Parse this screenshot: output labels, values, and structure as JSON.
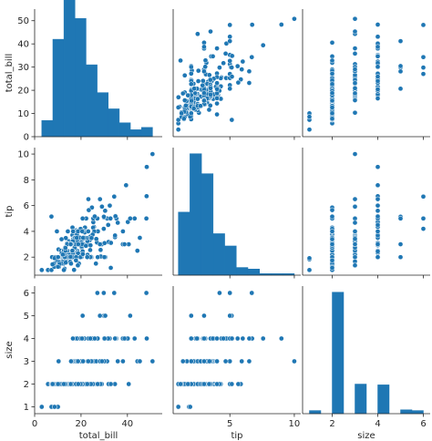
{
  "chart_data": {
    "type": "pairplot",
    "variables": [
      "total_bill",
      "tip",
      "size"
    ],
    "color": "#1f77b4",
    "panel_color_edge": "#ffffff",
    "axes": {
      "total_bill": {
        "label": "total_bill",
        "lim": [
          0,
          55
        ],
        "ticks": [
          "0",
          "20",
          "40"
        ],
        "tick_values": [
          0,
          20,
          40
        ],
        "ytick_values": [
          10,
          20,
          30,
          40,
          50
        ],
        "yticks": [
          "10",
          "20",
          "30",
          "40",
          "50"
        ]
      },
      "tip": {
        "label": "tip",
        "lim": [
          0.6,
          10.5
        ],
        "ticks": [
          "5",
          "10"
        ],
        "tick_values": [
          5,
          10
        ],
        "ytick_values": [
          2,
          4,
          6,
          8,
          10
        ],
        "yticks": [
          "2",
          "4",
          "6",
          "8",
          "10"
        ]
      },
      "size": {
        "label": "size",
        "lim": [
          0.7,
          6.3
        ],
        "ticks": [
          "2",
          "4",
          "6"
        ],
        "tick_values": [
          2,
          4,
          6
        ],
        "ytick_values": [
          1,
          2,
          3,
          4,
          5,
          6
        ],
        "yticks": [
          "1",
          "2",
          "3",
          "4",
          "5",
          "6"
        ]
      }
    },
    "histograms": {
      "total_bill": {
        "edges": [
          3.07,
          7.85,
          12.62,
          17.4,
          22.17,
          26.95,
          31.73,
          36.5,
          41.28,
          46.05,
          50.83
        ],
        "counts": [
          7,
          42,
          68,
          51,
          31,
          19,
          12,
          6,
          3,
          4
        ],
        "ylim": [
          0,
          55
        ],
        "ytick_values": [
          0,
          10,
          20,
          30,
          40,
          50
        ],
        "yticks": [
          "0",
          "10",
          "20",
          "30",
          "40",
          "50"
        ]
      },
      "tip": {
        "edges": [
          1.0,
          1.9,
          2.8,
          3.7,
          4.6,
          5.5,
          6.4,
          7.3,
          8.2,
          9.1,
          10.0
        ],
        "counts": [
          41,
          79,
          66,
          27,
          19,
          5,
          4,
          1,
          1,
          1
        ]
      },
      "size": {
        "edges": [
          1.0,
          1.5,
          2.0,
          2.5,
          3.0,
          3.5,
          4.0,
          4.5,
          5.0,
          5.5,
          6.0
        ],
        "counts": [
          4,
          0,
          156,
          0,
          38,
          0,
          37,
          0,
          5,
          4
        ]
      }
    },
    "data": {
      "total_bill": [
        16.99,
        10.34,
        21.01,
        23.68,
        24.59,
        25.29,
        8.77,
        26.88,
        15.04,
        14.78,
        10.27,
        35.26,
        15.42,
        18.43,
        14.83,
        21.58,
        10.33,
        16.29,
        16.97,
        20.65,
        17.92,
        20.29,
        15.77,
        39.42,
        19.82,
        17.81,
        13.37,
        12.69,
        21.7,
        19.65,
        9.55,
        18.35,
        15.06,
        20.69,
        17.78,
        24.06,
        16.31,
        16.93,
        18.69,
        31.27,
        16.04,
        17.46,
        13.94,
        9.68,
        30.4,
        18.29,
        22.23,
        32.4,
        28.55,
        18.04,
        12.54,
        10.29,
        34.81,
        9.94,
        25.56,
        19.49,
        38.01,
        26.41,
        11.24,
        48.27,
        20.29,
        13.81,
        11.02,
        18.29,
        17.59,
        20.08,
        16.45,
        3.07,
        20.23,
        15.01,
        12.02,
        17.07,
        26.86,
        25.28,
        14.73,
        10.51,
        17.92,
        27.2,
        22.76,
        17.29,
        19.44,
        16.66,
        10.07,
        32.68,
        15.98,
        34.83,
        13.03,
        18.28,
        24.71,
        21.16,
        28.97,
        22.49,
        5.75,
        16.32,
        22.75,
        40.17,
        27.28,
        12.03,
        21.01,
        12.46,
        11.35,
        15.38,
        44.3,
        22.42,
        20.92,
        15.36,
        20.49,
        25.21,
        18.24,
        14.31,
        14.0,
        7.25,
        38.07,
        23.95,
        25.71,
        17.31,
        29.93,
        10.65,
        12.43,
        24.08,
        11.69,
        13.42,
        14.26,
        15.95,
        12.48,
        29.8,
        8.52,
        14.52,
        11.38,
        22.82,
        19.08,
        20.27,
        11.17,
        12.26,
        18.26,
        8.51,
        10.33,
        14.15,
        16.0,
        13.16,
        17.47,
        34.3,
        41.19,
        27.05,
        16.43,
        8.35,
        18.64,
        11.87,
        9.78,
        7.51,
        14.07,
        13.13,
        17.26,
        24.55,
        19.77,
        29.85,
        48.17,
        25.0,
        13.39,
        16.49,
        21.5,
        12.66,
        16.21,
        13.81,
        17.51,
        24.52,
        20.76,
        31.71,
        10.59,
        10.63,
        50.81,
        15.81,
        7.25,
        31.85,
        16.82,
        32.9,
        17.89,
        14.48,
        9.6,
        34.63,
        34.65,
        23.33,
        45.35,
        23.17,
        40.55,
        20.69,
        20.9,
        30.46,
        18.15,
        23.1,
        15.69,
        19.81,
        28.44,
        15.48,
        16.58,
        7.56,
        10.34,
        43.11,
        13.0,
        13.51,
        18.71,
        12.74,
        13.0,
        16.4,
        20.53,
        16.47,
        26.59,
        38.73,
        24.27,
        12.76,
        30.06,
        25.89,
        48.33,
        13.27,
        28.17,
        12.9,
        28.15,
        11.59,
        7.74,
        30.14,
        12.16,
        13.42,
        8.58,
        15.98,
        13.42,
        16.27,
        10.09,
        20.45,
        13.28,
        22.12,
        24.01,
        15.69,
        11.61,
        10.77,
        15.53,
        10.07,
        12.6,
        32.83,
        35.83,
        29.03,
        27.18,
        22.67,
        17.82,
        18.78
      ],
      "tip": [
        1.01,
        1.66,
        3.5,
        3.31,
        3.61,
        4.71,
        2.0,
        3.12,
        1.96,
        3.23,
        1.71,
        5.0,
        1.57,
        3.0,
        3.02,
        3.92,
        1.67,
        3.71,
        3.5,
        3.35,
        4.08,
        2.75,
        2.23,
        7.58,
        3.18,
        2.34,
        2.0,
        2.0,
        4.3,
        3.0,
        1.45,
        2.5,
        3.0,
        2.45,
        3.27,
        3.6,
        2.0,
        3.07,
        2.31,
        5.0,
        2.24,
        2.54,
        3.06,
        1.32,
        5.6,
        3.0,
        5.0,
        6.0,
        2.05,
        3.0,
        2.5,
        2.6,
        5.2,
        1.56,
        4.34,
        3.51,
        3.0,
        1.5,
        1.76,
        6.73,
        3.21,
        2.0,
        1.98,
        3.76,
        2.64,
        3.15,
        2.47,
        1.0,
        2.01,
        2.09,
        1.97,
        3.0,
        3.14,
        5.0,
        2.2,
        1.25,
        3.08,
        4.0,
        3.0,
        2.71,
        3.0,
        3.4,
        1.83,
        5.0,
        2.03,
        5.17,
        2.0,
        4.0,
        5.85,
        3.0,
        3.0,
        3.5,
        1.0,
        4.3,
        3.25,
        4.73,
        4.0,
        1.5,
        3.0,
        1.5,
        2.5,
        3.0,
        2.5,
        3.48,
        4.08,
        1.64,
        4.06,
        4.29,
        3.76,
        4.0,
        3.0,
        1.0,
        4.0,
        2.55,
        4.0,
        3.5,
        5.07,
        1.5,
        1.8,
        2.92,
        2.31,
        1.68,
        2.5,
        2.0,
        2.52,
        4.2,
        1.48,
        2.0,
        2.0,
        2.18,
        1.5,
        2.83,
        1.5,
        2.0,
        3.25,
        1.25,
        2.0,
        2.0,
        2.0,
        2.75,
        3.5,
        6.7,
        5.0,
        5.0,
        2.3,
        1.5,
        1.36,
        1.63,
        1.73,
        2.0,
        2.5,
        2.0,
        2.74,
        2.0,
        2.0,
        5.14,
        5.0,
        3.75,
        2.61,
        2.0,
        3.5,
        2.5,
        2.0,
        2.0,
        3.0,
        3.48,
        2.24,
        4.5,
        1.61,
        2.0,
        10.0,
        3.16,
        5.15,
        3.18,
        4.0,
        3.11,
        2.0,
        2.0,
        4.0,
        3.55,
        3.68,
        5.65,
        3.5,
        6.5,
        3.0,
        5.0,
        3.5,
        2.0,
        3.5,
        4.0,
        1.5,
        4.19,
        2.56,
        2.02,
        4.0,
        1.44,
        2.0,
        5.0,
        2.0,
        2.0,
        4.0,
        2.01,
        2.0,
        2.5,
        4.0,
        3.23,
        3.41,
        3.0,
        2.03,
        2.23,
        2.0,
        5.16,
        9.0,
        2.5,
        6.5,
        1.1,
        3.0,
        1.5,
        1.44,
        3.09,
        2.2,
        3.48,
        1.92,
        3.0,
        1.58,
        2.5,
        2.0,
        3.0,
        2.72,
        2.88,
        2.0,
        3.0,
        3.39,
        1.47,
        3.0,
        1.25,
        1.0,
        1.17,
        4.67,
        5.92,
        2.0,
        2.0,
        1.75,
        3.0
      ],
      "size": [
        2,
        3,
        3,
        2,
        4,
        4,
        2,
        4,
        2,
        2,
        2,
        4,
        2,
        4,
        2,
        2,
        3,
        3,
        3,
        3,
        2,
        2,
        2,
        4,
        2,
        4,
        2,
        2,
        2,
        2,
        2,
        4,
        2,
        4,
        2,
        3,
        3,
        3,
        3,
        3,
        3,
        2,
        2,
        2,
        4,
        2,
        2,
        4,
        3,
        2,
        2,
        2,
        4,
        2,
        4,
        2,
        4,
        2,
        2,
        4,
        2,
        2,
        2,
        4,
        3,
        3,
        2,
        1,
        2,
        2,
        2,
        3,
        2,
        2,
        2,
        2,
        2,
        4,
        2,
        2,
        2,
        2,
        1,
        2,
        2,
        4,
        2,
        2,
        2,
        2,
        2,
        2,
        2,
        2,
        2,
        4,
        2,
        2,
        2,
        2,
        2,
        2,
        3,
        2,
        2,
        2,
        2,
        2,
        2,
        2,
        2,
        1,
        3,
        2,
        3,
        2,
        4,
        2,
        2,
        4,
        2,
        2,
        2,
        2,
        2,
        6,
        2,
        2,
        2,
        3,
        2,
        2,
        2,
        2,
        2,
        2,
        2,
        2,
        2,
        2,
        2,
        6,
        5,
        6,
        2,
        2,
        3,
        2,
        2,
        2,
        2,
        2,
        3,
        4,
        4,
        5,
        6,
        4,
        2,
        4,
        4,
        2,
        3,
        2,
        2,
        3,
        2,
        4,
        2,
        2,
        3,
        2,
        2,
        2,
        2,
        2,
        2,
        2,
        2,
        2,
        4,
        2,
        3,
        4,
        2,
        5,
        3,
        5,
        3,
        3,
        2,
        2,
        2,
        2,
        2,
        2,
        2,
        4,
        2,
        2,
        3,
        2,
        2,
        2,
        4,
        3,
        3,
        4,
        2,
        2,
        3,
        4,
        4,
        2,
        3,
        2,
        5,
        2,
        2,
        4,
        2,
        2,
        1,
        3,
        2,
        2,
        2,
        4,
        2,
        2,
        4,
        3,
        2,
        2,
        2,
        2,
        2,
        2,
        3,
        3,
        2,
        2,
        2,
        2
      ]
    }
  }
}
